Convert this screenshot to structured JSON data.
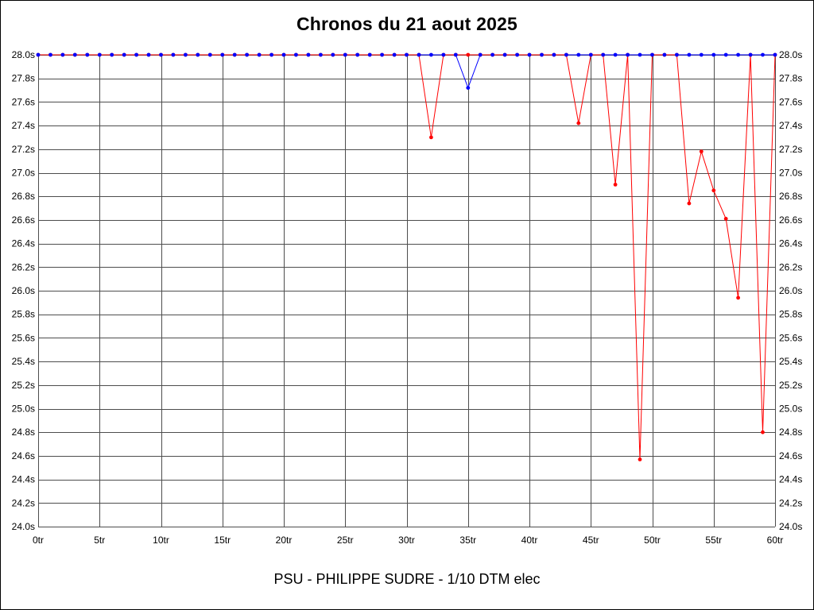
{
  "chart_data": {
    "type": "line",
    "title": "Chronos du 21 aout 2025",
    "footer": "PSU - PHILIPPE SUDRE - 1/10 DTM elec",
    "x_unit": "tr",
    "y_unit": "s",
    "xlim": [
      0,
      60
    ],
    "ylim": [
      24.0,
      28.0
    ],
    "x_tick_step": 5,
    "y_tick_step": 0.2,
    "x_ticks": [
      "0tr",
      "5tr",
      "10tr",
      "15tr",
      "20tr",
      "25tr",
      "30tr",
      "35tr",
      "40tr",
      "45tr",
      "50tr",
      "55tr",
      "60tr"
    ],
    "y_ticks": [
      "28.0s",
      "27.8s",
      "27.6s",
      "27.4s",
      "27.2s",
      "27.0s",
      "26.8s",
      "26.6s",
      "26.4s",
      "26.2s",
      "26.0s",
      "25.8s",
      "25.6s",
      "25.4s",
      "25.2s",
      "25.0s",
      "24.8s",
      "24.6s",
      "24.4s",
      "24.2s",
      "24.0s"
    ],
    "grid": true,
    "grid_color": "#4d4d4d",
    "legend": "none",
    "x": [
      0,
      1,
      2,
      3,
      4,
      5,
      6,
      7,
      8,
      9,
      10,
      11,
      12,
      13,
      14,
      15,
      16,
      17,
      18,
      19,
      20,
      21,
      22,
      23,
      24,
      25,
      26,
      27,
      28,
      29,
      30,
      31,
      32,
      33,
      34,
      35,
      36,
      37,
      38,
      39,
      40,
      41,
      42,
      43,
      44,
      45,
      46,
      47,
      48,
      49,
      50,
      51,
      52,
      53,
      54,
      55,
      56,
      57,
      58,
      59,
      60
    ],
    "series": [
      {
        "name": "blue",
        "color": "#0000ff",
        "values": [
          28.0,
          28.0,
          28.0,
          28.0,
          28.0,
          28.0,
          28.0,
          28.0,
          28.0,
          28.0,
          28.0,
          28.0,
          28.0,
          28.0,
          28.0,
          28.0,
          28.0,
          28.0,
          28.0,
          28.0,
          28.0,
          28.0,
          28.0,
          28.0,
          28.0,
          28.0,
          28.0,
          28.0,
          28.0,
          28.0,
          28.0,
          28.0,
          28.0,
          28.0,
          28.0,
          27.72,
          28.0,
          28.0,
          28.0,
          28.0,
          28.0,
          28.0,
          28.0,
          28.0,
          28.0,
          28.0,
          28.0,
          28.0,
          28.0,
          28.0,
          28.0,
          28.0,
          28.0,
          28.0,
          28.0,
          28.0,
          28.0,
          28.0,
          28.0,
          28.0,
          28.0
        ]
      },
      {
        "name": "red",
        "color": "#ff0000",
        "values": [
          28.0,
          28.0,
          28.0,
          28.0,
          28.0,
          28.0,
          28.0,
          28.0,
          28.0,
          28.0,
          28.0,
          28.0,
          28.0,
          28.0,
          28.0,
          28.0,
          28.0,
          28.0,
          28.0,
          28.0,
          28.0,
          28.0,
          28.0,
          28.0,
          28.0,
          28.0,
          28.0,
          28.0,
          28.0,
          28.0,
          28.0,
          28.0,
          27.3,
          28.0,
          28.0,
          28.0,
          28.0,
          28.0,
          28.0,
          28.0,
          28.0,
          28.0,
          28.0,
          28.0,
          27.42,
          28.0,
          28.0,
          26.9,
          28.0,
          24.57,
          28.0,
          28.0,
          28.0,
          26.74,
          27.18,
          26.85,
          26.61,
          25.94,
          28.0,
          24.8,
          28.0
        ]
      }
    ]
  }
}
